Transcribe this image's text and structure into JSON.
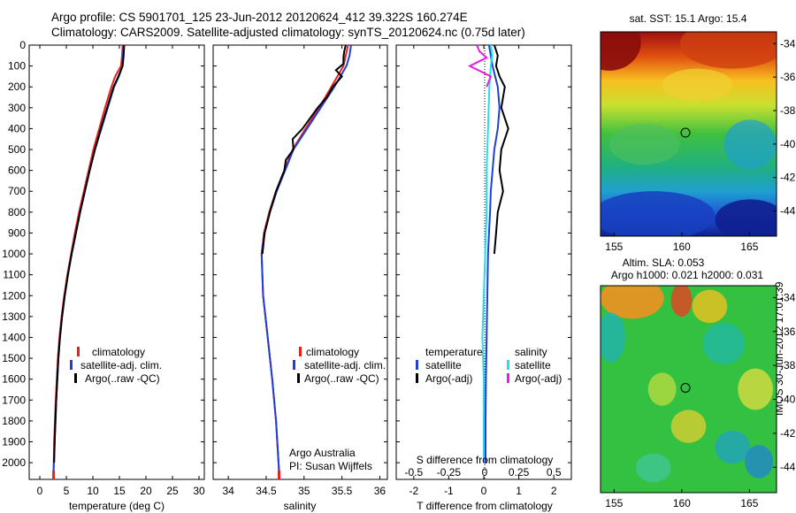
{
  "header": {
    "title_line1": "Argo profile: CS 5901701_125 23-Jun-2012 20120624_412 39.322S 160.274E",
    "title_line2": "Climatology: CARS2009. Satellite-adjusted climatology: synTS_20120624.nc (0.75d later)"
  },
  "side_label": "IMOS 30-Jun-2012 17:01:39",
  "colors": {
    "climatology": "#e8201c",
    "satellite": "#1f3fd6",
    "argo": "#000000",
    "sat_salinity": "#22e0e8",
    "argo_salinity": "#e020e0"
  },
  "chart_data": [
    {
      "type": "line",
      "id": "temperature",
      "xlabel": "temperature (deg C)",
      "ylabel": "",
      "xlim": [
        -2,
        31
      ],
      "ylim": [
        2080,
        0
      ],
      "xticks": [
        0,
        5,
        10,
        15,
        20,
        25,
        30
      ],
      "yticks": [
        0,
        100,
        200,
        300,
        400,
        500,
        600,
        700,
        800,
        900,
        1000,
        1100,
        1200,
        1300,
        1400,
        1500,
        1600,
        1700,
        1800,
        1900,
        2000
      ],
      "legend": [
        "climatology",
        "satellite-adj. clim.",
        "Argo(..raw -QC)"
      ],
      "series": [
        {
          "name": "climatology",
          "depth": [
            0,
            50,
            100,
            150,
            200,
            300,
            400,
            500,
            600,
            700,
            800,
            900,
            1000,
            1100,
            1200,
            1300,
            1400,
            1500,
            1700,
            1900,
            2040
          ],
          "values": [
            15.6,
            15.5,
            15.3,
            14.2,
            13.5,
            12.3,
            11.2,
            10.1,
            9.2,
            8.3,
            7.4,
            6.6,
            5.9,
            5.2,
            4.6,
            4.1,
            3.7,
            3.4,
            3.0,
            2.7,
            2.6
          ]
        },
        {
          "name": "satellite-adj. clim.",
          "depth": [
            0,
            50,
            100,
            150,
            200,
            300,
            400,
            500,
            600,
            700,
            800,
            900,
            1000,
            1100,
            1200,
            1300,
            1400,
            1500,
            1700,
            1900,
            2040
          ],
          "values": [
            15.8,
            15.7,
            15.6,
            14.9,
            14.0,
            12.8,
            11.6,
            10.4,
            9.4,
            8.5,
            7.6,
            6.8,
            6.0,
            5.3,
            4.7,
            4.2,
            3.8,
            3.5,
            3.1,
            2.8,
            2.6
          ]
        },
        {
          "name": "Argo(..raw -QC)",
          "depth": [
            0,
            50,
            100,
            150,
            200,
            300,
            400,
            500,
            600,
            700,
            800,
            900,
            1000,
            1100,
            1200,
            1300,
            1400,
            1500,
            1700,
            1900,
            2000
          ],
          "values": [
            15.9,
            15.8,
            15.6,
            14.8,
            13.9,
            12.7,
            11.5,
            10.4,
            9.4,
            8.5,
            7.6,
            6.8,
            6.0,
            5.3,
            4.7,
            4.2,
            3.8,
            3.5,
            3.1,
            2.8,
            2.7
          ]
        }
      ]
    },
    {
      "type": "line",
      "id": "salinity",
      "xlabel": "salinity",
      "ylabel": "",
      "xlim": [
        33.8,
        36.1
      ],
      "ylim": [
        2080,
        0
      ],
      "xticks": [
        34,
        34.5,
        35,
        35.5,
        36
      ],
      "legend": [
        "climatology",
        "satellite-adj. clim.",
        "Argo(..raw -QC)"
      ],
      "annotation": [
        "Argo Australia",
        "PI: Susan Wijffels"
      ],
      "series": [
        {
          "name": "climatology",
          "depth": [
            0,
            50,
            100,
            150,
            200,
            300,
            400,
            500,
            600,
            700,
            800,
            900,
            1000,
            1200,
            1400,
            1600,
            1800,
            2040
          ],
          "values": [
            35.58,
            35.55,
            35.52,
            35.44,
            35.36,
            35.2,
            35.02,
            34.85,
            34.74,
            34.63,
            34.54,
            34.47,
            34.44,
            34.46,
            34.52,
            34.58,
            34.63,
            34.67
          ]
        },
        {
          "name": "satellite-adj. clim.",
          "depth": [
            0,
            50,
            100,
            150,
            200,
            300,
            400,
            500,
            600,
            700,
            800,
            900,
            1000,
            1200,
            1400,
            1600,
            1800,
            2040
          ],
          "values": [
            35.62,
            35.6,
            35.56,
            35.48,
            35.4,
            35.22,
            35.04,
            34.86,
            34.75,
            34.64,
            34.55,
            34.48,
            34.44,
            34.46,
            34.52,
            34.58,
            34.63,
            34.67
          ]
        },
        {
          "name": "Argo(..raw -QC)",
          "depth": [
            0,
            30,
            60,
            90,
            120,
            150,
            200,
            250,
            300,
            400,
            450,
            500,
            550,
            600,
            700,
            800,
            900,
            1000
          ],
          "values": [
            35.55,
            35.53,
            35.52,
            35.52,
            35.42,
            35.5,
            35.38,
            35.3,
            35.18,
            34.98,
            34.85,
            34.86,
            34.76,
            34.74,
            34.63,
            34.55,
            34.48,
            34.45
          ]
        }
      ]
    },
    {
      "type": "line",
      "id": "difference",
      "xlabel": "T difference from climatology",
      "xlabel_top": "S difference from climatology",
      "xlim": [
        -2.5,
        2.5
      ],
      "ylim": [
        2080,
        0
      ],
      "xticks": [
        -2,
        -1,
        0,
        1,
        2
      ],
      "xticks_salinity": [
        "-0.5",
        "-0.25",
        "0",
        "0.25",
        "0.5"
      ],
      "legend_temperature": {
        "header": "temperature",
        "items": [
          "satellite",
          "Argo(-adj)"
        ]
      },
      "legend_salinity": {
        "header": "salinity",
        "items": [
          "satellite",
          "Argo(-adj)"
        ]
      },
      "series": [
        {
          "name": "temperature satellite",
          "depth": [
            0,
            50,
            100,
            200,
            300,
            400,
            500,
            600,
            700,
            800,
            900,
            1000,
            1200,
            1400,
            1600,
            1800,
            2000
          ],
          "values": [
            0.15,
            0.2,
            0.25,
            0.4,
            0.45,
            0.4,
            0.3,
            0.25,
            0.2,
            0.18,
            0.15,
            0.12,
            0.1,
            0.08,
            0.06,
            0.05,
            0.05
          ]
        },
        {
          "name": "temperature Argo(-adj)",
          "depth": [
            0,
            50,
            100,
            150,
            200,
            300,
            400,
            500,
            600,
            700,
            800,
            900,
            1000
          ],
          "values": [
            0.3,
            0.4,
            0.35,
            0.45,
            0.6,
            0.5,
            0.7,
            0.5,
            0.45,
            0.55,
            0.4,
            0.35,
            0.3
          ]
        },
        {
          "name": "salinity satellite",
          "depth": [
            0,
            50,
            100,
            200,
            400,
            600,
            800,
            1000,
            1200,
            1400,
            1600,
            1800,
            2000
          ],
          "values": [
            0.05,
            0.06,
            0.05,
            0.04,
            0.03,
            0.02,
            0.02,
            0.01,
            0.0,
            -0.01,
            0.0,
            0.0,
            0.0
          ]
        },
        {
          "name": "salinity Argo(-adj)",
          "depth": [
            0,
            30,
            60,
            100,
            150,
            200
          ],
          "values": [
            -0.05,
            -0.03,
            0.02,
            -0.1,
            0.05,
            0.02
          ]
        }
      ]
    },
    {
      "type": "heatmap",
      "id": "sst_map",
      "title": "sat. SST: 15.1  Argo: 15.4",
      "xticks": [
        155,
        160,
        165
      ],
      "yticks": [
        -34,
        -36,
        -38,
        -40,
        -42,
        -44
      ],
      "xlim": [
        154,
        167
      ],
      "ylim": [
        -45.5,
        -33.3
      ],
      "marker": {
        "lon": 160.274,
        "lat": -39.322
      }
    },
    {
      "type": "heatmap",
      "id": "sla_map",
      "title_line1": "Altim. SLA: 0.053",
      "title_line2": "Argo h1000: 0.021 h2000: 0.031",
      "xticks": [
        155,
        160,
        165
      ],
      "yticks": [
        -34,
        -36,
        -38,
        -40,
        -42,
        -44
      ],
      "xlim": [
        154,
        167
      ],
      "ylim": [
        -45.5,
        -33.3
      ],
      "marker": {
        "lon": 160.274,
        "lat": -39.322
      }
    }
  ]
}
